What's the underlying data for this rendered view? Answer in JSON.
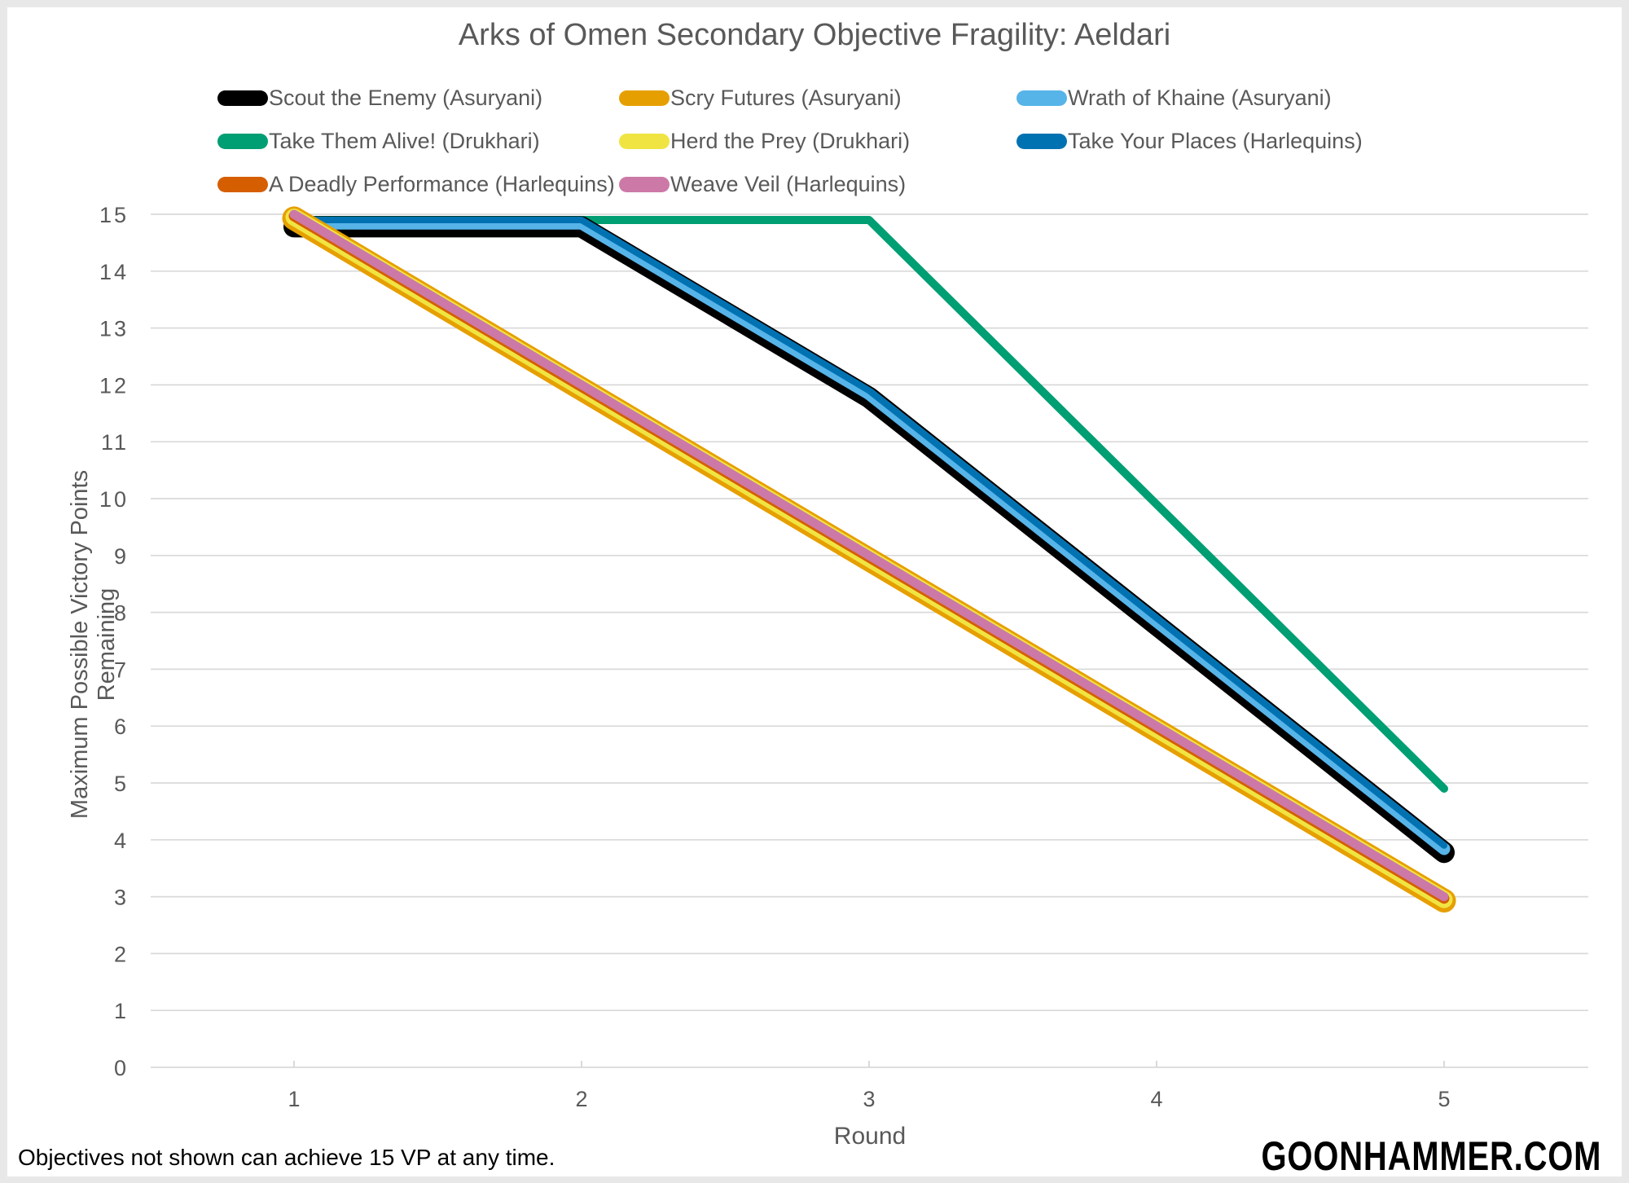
{
  "title": "Arks of Omen Secondary Objective Fragility: Aeldari",
  "footnote": "Objectives not shown can achieve 15 VP at any time.",
  "watermark": "GOONHAMMER.COM",
  "frame_color": "#E8E8E8",
  "text_color_gray": "#595959",
  "gridline_color": "#D9D9D9",
  "legend": {
    "items": [
      {
        "id": "scout-the-enemy",
        "label": "Scout the Enemy (Asuryani)",
        "color": "#000000"
      },
      {
        "id": "scry-futures",
        "label": "Scry Futures (Asuryani)",
        "color": "#E69F00"
      },
      {
        "id": "wrath-of-khaine",
        "label": "Wrath of Khaine (Asuryani)",
        "color": "#56B4E9"
      },
      {
        "id": "take-them-alive",
        "label": "Take Them Alive! (Drukhari)",
        "color": "#009E73"
      },
      {
        "id": "herd-the-prey",
        "label": "Herd the Prey (Drukhari)",
        "color": "#F0E442"
      },
      {
        "id": "take-your-places",
        "label": "Take Your Places (Harlequins)",
        "color": "#0072B2"
      },
      {
        "id": "a-deadly-performance",
        "label": "A Deadly Performance (Harlequins)",
        "color": "#D55E00"
      },
      {
        "id": "weave-veil",
        "label": "Weave Veil (Harlequins)",
        "color": "#CC79A7"
      }
    ]
  },
  "chart_data": {
    "type": "line",
    "title": "Arks of Omen Secondary Objective Fragility: Aeldari",
    "xlabel": "Round",
    "ylabel": "Maximum Possible Victory Points Remaining",
    "x": [
      1,
      2,
      3,
      4,
      5
    ],
    "x_tick_labels": [
      "1",
      "2",
      "3",
      "4",
      "5"
    ],
    "ylim": [
      0,
      15
    ],
    "y_tick_step": 1,
    "grid": "horizontal",
    "legend_position": "top",
    "series": [
      {
        "id": "take-them-alive",
        "name": "Take Them Alive! (Drukhari)",
        "color": "#009E73",
        "values": [
          15,
          15,
          15,
          10,
          5
        ],
        "stroke_width": 10,
        "plot_offset_vp": -0.1
      },
      {
        "id": "scout-the-enemy",
        "name": "Scout the Enemy (Asuryani)",
        "color": "#000000",
        "values": [
          15,
          15,
          12,
          8,
          4
        ],
        "stroke_width": 26,
        "plot_offset_vp": -0.22
      },
      {
        "id": "wrath-of-khaine",
        "name": "Wrath of Khaine (Asuryani)",
        "color": "#56B4E9",
        "values": [
          15,
          15,
          12,
          8,
          4
        ],
        "stroke_width": 15,
        "plot_offset_vp": -0.16
      },
      {
        "id": "take-your-places",
        "name": "Take Your Places (Harlequins)",
        "color": "#0072B2",
        "values": [
          15,
          15,
          12,
          8,
          4
        ],
        "stroke_width": 8,
        "plot_offset_vp": -0.1
      },
      {
        "id": "scry-futures",
        "name": "Scry Futures (Asuryani)",
        "color": "#E69F00",
        "values": [
          15,
          12,
          9,
          6,
          3
        ],
        "stroke_width": 29,
        "plot_offset_vp": -0.07
      },
      {
        "id": "herd-the-prey",
        "name": "Herd the Prey (Drukhari)",
        "color": "#F0E442",
        "values": [
          15,
          12,
          9,
          6,
          3
        ],
        "stroke_width": 21,
        "plot_offset_vp": -0.05
      },
      {
        "id": "a-deadly-performance",
        "name": "A Deadly Performance (Harlequins)",
        "color": "#D55E00",
        "values": [
          15,
          12,
          9,
          6,
          3
        ],
        "stroke_width": 13,
        "plot_offset_vp": -0.03
      },
      {
        "id": "weave-veil",
        "name": "Weave Veil (Harlequins)",
        "color": "#CC79A7",
        "values": [
          15,
          12,
          9,
          6,
          3
        ],
        "stroke_width": 11,
        "plot_offset_vp": 0
      }
    ]
  }
}
